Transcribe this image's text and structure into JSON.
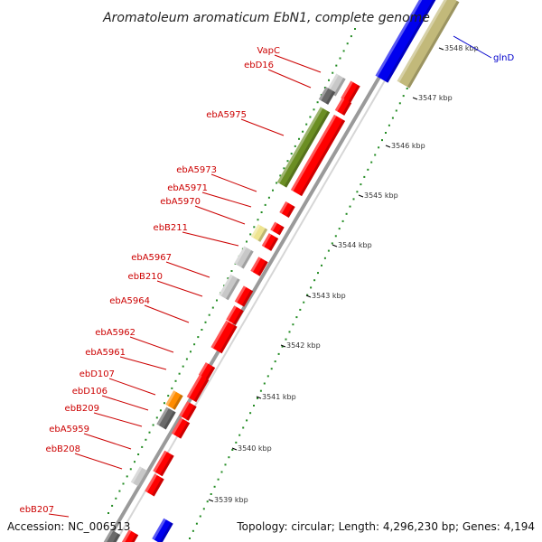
{
  "title": "Aromatoleum aromaticum EbN1, complete genome",
  "accession": "Accession: NC_006513",
  "topology": "Topology: circular; Length: 4,296,230 bp; Genes: 4,194",
  "colors": {
    "cds": "#ff0000",
    "backbone": "#8c8c8c",
    "olive": "#6b8e23",
    "khaki": "#c2b97a",
    "blue": "#0000ee",
    "grey_light": "#c8c8c8",
    "grey_dark": "#6a6a6a",
    "orange": "#ff8c00",
    "yellow_pale": "#eee490",
    "dots": "#228b22",
    "label_red": "#cc0000",
    "label_blue": "#0000cc"
  },
  "scale_labels": [
    "3548 kbp",
    "3547 kbp",
    "3546 kbp",
    "3545 kbp",
    "3544 kbp",
    "3543 kbp",
    "3542 kbp",
    "3541 kbp",
    "3540 kbp",
    "3539 kbp"
  ],
  "gene_labels": [
    "VapC",
    "ebD16",
    "ebA5975",
    "ebA5973",
    "ebA5971",
    "ebA5970",
    "ebB211",
    "ebA5967",
    "ebB210",
    "ebA5964",
    "ebA5962",
    "ebA5961",
    "ebD107",
    "ebD106",
    "ebB209",
    "ebA5959",
    "ebB208",
    "ebB207"
  ],
  "right_label": "glnD"
}
